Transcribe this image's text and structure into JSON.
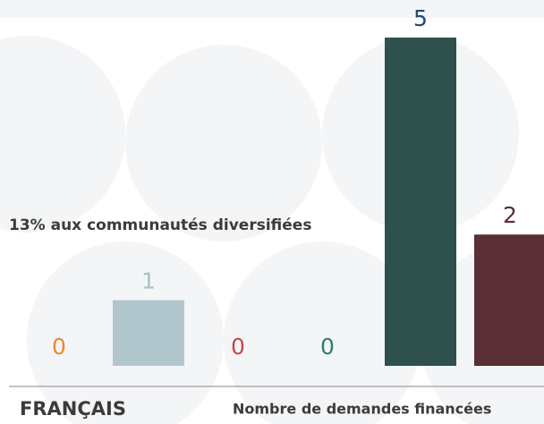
{
  "chart_data": {
    "type": "bar",
    "title": "FRANÇAIS",
    "x_label": "Nombre de demandes financées",
    "annotation": "13% aux communautés diversifiées",
    "categories": [
      null,
      null,
      null,
      null,
      null,
      null
    ],
    "values": [
      0,
      1,
      0,
      0,
      5,
      2
    ],
    "colors": [
      "#e8892f",
      "#b1c6cc",
      "#c9474a",
      "#2e7d6e",
      "#2f514d",
      "#5a2f35"
    ],
    "label_colors": [
      "#e8892f",
      "#a9c1c8",
      "#c9474a",
      "#2e7d6e",
      "#1c4a72",
      "#5a2f35"
    ]
  }
}
